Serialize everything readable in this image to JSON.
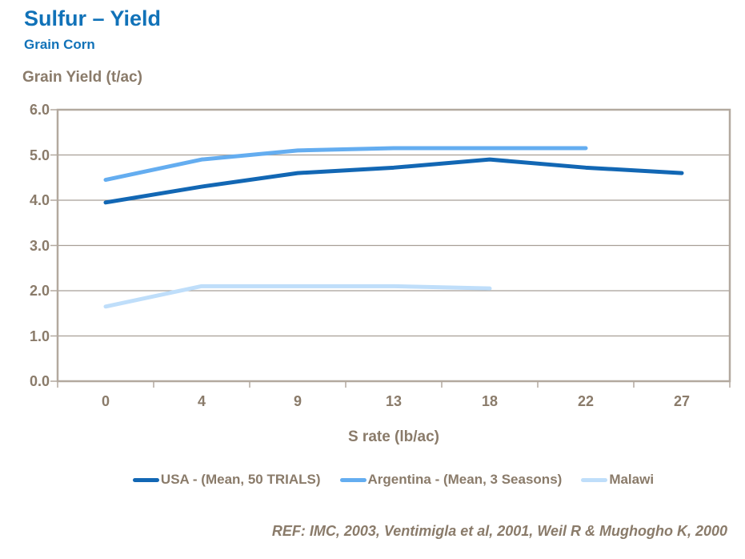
{
  "header": {
    "title": "Sulfur – Yield",
    "subtitle": "Grain Corn"
  },
  "chart_data": {
    "type": "line",
    "title": "Sulfur – Yield",
    "subtitle": "Grain Corn",
    "ylabel": "Grain Yield (t/ac)",
    "xlabel": "S rate (lb/ac)",
    "categories": [
      "0",
      "4",
      "9",
      "13",
      "18",
      "22",
      "27"
    ],
    "ytick_labels": [
      "0.0",
      "1.0",
      "2.0",
      "3.0",
      "4.0",
      "5.0",
      "6.0"
    ],
    "ylim": [
      0,
      6
    ],
    "grid": "horizontal",
    "legend_position": "bottom",
    "series": [
      {
        "name": "USA - (Mean, 50 TRIALS)",
        "color": "#1267b4",
        "values": [
          3.95,
          4.3,
          4.6,
          4.72,
          4.9,
          4.72,
          4.6
        ]
      },
      {
        "name": "Argentina - (Mean, 3 Seasons)",
        "color": "#64adf0",
        "values": [
          4.45,
          4.9,
          5.1,
          5.15,
          5.15,
          5.15,
          null
        ]
      },
      {
        "name": "Malawi",
        "color": "#bfdefa",
        "values": [
          1.65,
          2.1,
          2.1,
          2.1,
          2.05,
          null,
          null
        ]
      }
    ]
  },
  "footer": {
    "ref": "REF: IMC, 2003, Ventimigla et al, 2001, Weil R & Mughogho K, 2000"
  },
  "colors": {
    "title_blue": "#1172b8",
    "axis_text": "#8a7b6a",
    "gridline": "#a89f96",
    "plot_border": "#b3a99f",
    "background": "#ffffff"
  }
}
